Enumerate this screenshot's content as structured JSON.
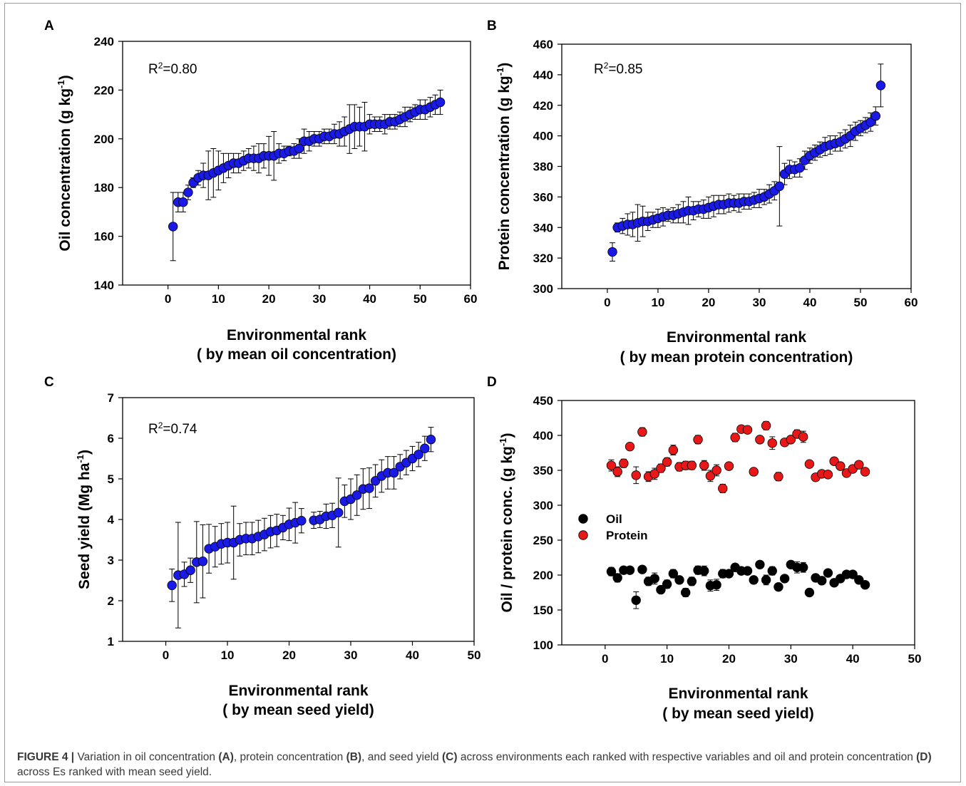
{
  "figure": {
    "caption_label": "FIGURE 4 |",
    "caption": {
      "t1": " Variation in oil concentration ",
      "a": "(A)",
      "t2": ", protein concentration ",
      "b": "(B)",
      "t3": ", and seed yield ",
      "c": "(C)",
      "t4": " across environments each ranked with respective variables and oil and protein concentration ",
      "d": "(D)",
      "t5": " across Es ranked with mean seed yield."
    }
  },
  "colors": {
    "marker_blue": "#1a1ae6",
    "marker_red": "#e81818",
    "marker_black": "#000000"
  },
  "chart_data": [
    {
      "panel": "A",
      "type": "scatter",
      "annotation": "R2=0.80",
      "ylabel": "Oil concentration (g kg-1)",
      "xlabel_line1": "Environmental rank",
      "xlabel_line2": "( by mean oil concentration)",
      "xlim": [
        -9,
        60
      ],
      "ylim": [
        140,
        240
      ],
      "xticks": [
        0,
        10,
        20,
        30,
        40,
        50,
        60
      ],
      "yticks": [
        140,
        160,
        180,
        200,
        220,
        240
      ],
      "series": [
        {
          "x": [
            1,
            2,
            3,
            4,
            5,
            6,
            7,
            8,
            9,
            10,
            11,
            12,
            13,
            14,
            15,
            16,
            17,
            18,
            19,
            20,
            21,
            22,
            23,
            24,
            25,
            26,
            27,
            28,
            29,
            30,
            31,
            32,
            33,
            34,
            35,
            36,
            37,
            38,
            39,
            40,
            41,
            42,
            43,
            44,
            45,
            46,
            47,
            48,
            49,
            50,
            51,
            52,
            53,
            54
          ],
          "y": [
            164,
            174,
            174,
            178,
            182,
            184,
            185,
            185,
            186,
            187,
            188,
            189,
            190,
            190,
            191,
            192,
            192,
            192,
            193,
            193,
            193,
            194,
            194,
            195,
            195,
            196,
            199,
            199,
            200,
            200,
            201,
            201,
            202,
            202,
            203,
            204,
            205,
            205,
            205,
            206,
            206,
            206,
            206,
            207,
            207,
            208,
            209,
            210,
            211,
            212,
            212,
            213,
            214,
            215
          ],
          "err": [
            14,
            4,
            4,
            3,
            2,
            3,
            5,
            10,
            10,
            8,
            6,
            5,
            4,
            4,
            4,
            4,
            5,
            6,
            5,
            8,
            10,
            4,
            3,
            2,
            3,
            4,
            5,
            4,
            3,
            3,
            3,
            3,
            4,
            5,
            6,
            10,
            9,
            8,
            10,
            4,
            3,
            3,
            4,
            3,
            3,
            3,
            4,
            3,
            3,
            4,
            4,
            4,
            4,
            5
          ]
        }
      ]
    },
    {
      "panel": "B",
      "type": "scatter",
      "annotation": "R2=0.85",
      "ylabel": "Protein concentration (g kg-1)",
      "xlabel_line1": "Environmental rank",
      "xlabel_line2": "( by mean protein concentration)",
      "xlim": [
        -9,
        60
      ],
      "ylim": [
        300,
        460
      ],
      "xticks": [
        0,
        10,
        20,
        30,
        40,
        50,
        60
      ],
      "yticks": [
        300,
        320,
        340,
        360,
        380,
        400,
        420,
        440,
        460
      ],
      "series": [
        {
          "x": [
            1,
            2,
            3,
            4,
            5,
            6,
            7,
            8,
            9,
            10,
            11,
            12,
            13,
            14,
            15,
            16,
            17,
            18,
            19,
            20,
            21,
            22,
            23,
            24,
            25,
            26,
            27,
            28,
            29,
            30,
            31,
            32,
            33,
            34,
            35,
            36,
            37,
            38,
            39,
            40,
            41,
            42,
            43,
            44,
            45,
            46,
            47,
            48,
            49,
            50,
            51,
            52,
            53,
            54
          ],
          "y": [
            324,
            340,
            341,
            342,
            342,
            343,
            344,
            344,
            345,
            346,
            347,
            348,
            348,
            349,
            350,
            351,
            351,
            352,
            352,
            353,
            354,
            355,
            355,
            356,
            356,
            356,
            357,
            357,
            358,
            359,
            360,
            362,
            364,
            367,
            375,
            378,
            378,
            379,
            384,
            387,
            389,
            391,
            393,
            394,
            395,
            396,
            398,
            400,
            403,
            405,
            407,
            409,
            413,
            433
          ],
          "err": [
            6,
            3,
            5,
            7,
            8,
            12,
            10,
            6,
            5,
            6,
            6,
            4,
            5,
            6,
            7,
            9,
            6,
            5,
            6,
            7,
            7,
            6,
            6,
            6,
            5,
            6,
            5,
            5,
            5,
            6,
            5,
            6,
            6,
            26,
            7,
            6,
            5,
            6,
            6,
            5,
            5,
            5,
            6,
            6,
            5,
            6,
            6,
            7,
            6,
            5,
            5,
            6,
            6,
            14
          ]
        }
      ]
    },
    {
      "panel": "C",
      "type": "scatter",
      "annotation": "R2=0.74",
      "ylabel": "Seed yield (Mg ha-1)",
      "xlabel_line1": "Environmental rank",
      "xlabel_line2": "( by mean seed yield)",
      "xlim": [
        -7,
        50
      ],
      "ylim": [
        1,
        7
      ],
      "xticks": [
        0,
        10,
        20,
        30,
        40,
        50
      ],
      "yticks": [
        1,
        2,
        3,
        4,
        5,
        6,
        7
      ],
      "series": [
        {
          "x": [
            1,
            2,
            3,
            4,
            5,
            6,
            7,
            8,
            9,
            10,
            11,
            12,
            13,
            14,
            15,
            16,
            17,
            18,
            19,
            20,
            21,
            22,
            24,
            25,
            26,
            27,
            28,
            29,
            30,
            31,
            32,
            33,
            34,
            35,
            36,
            37,
            38,
            39,
            40,
            41,
            42,
            43
          ],
          "y": [
            2.38,
            2.63,
            2.65,
            2.75,
            2.95,
            2.97,
            3.28,
            3.33,
            3.4,
            3.43,
            3.43,
            3.5,
            3.53,
            3.53,
            3.58,
            3.63,
            3.7,
            3.73,
            3.8,
            3.88,
            3.92,
            3.97,
            3.98,
            4.0,
            4.08,
            4.1,
            4.17,
            4.45,
            4.5,
            4.6,
            4.75,
            4.77,
            4.95,
            5.07,
            5.15,
            5.15,
            5.3,
            5.4,
            5.5,
            5.6,
            5.75,
            5.97
          ],
          "err": [
            0.4,
            1.3,
            0.3,
            0.3,
            1.0,
            0.9,
            0.6,
            0.5,
            0.5,
            0.5,
            0.9,
            0.4,
            0.4,
            0.4,
            0.4,
            0.4,
            0.4,
            0.4,
            0.3,
            0.4,
            0.5,
            0.3,
            0.2,
            0.2,
            0.3,
            0.3,
            0.85,
            0.4,
            0.5,
            0.5,
            0.5,
            0.5,
            0.4,
            0.4,
            0.4,
            0.4,
            0.3,
            0.3,
            0.3,
            0.3,
            0.3,
            0.3
          ]
        }
      ]
    },
    {
      "panel": "D",
      "type": "scatter",
      "ylabel": "Oil / protein conc. (g kg-1)",
      "xlabel_line1": "Environmental rank",
      "xlabel_line2": "( by mean seed yield)",
      "xlim": [
        -7,
        50
      ],
      "ylim": [
        100,
        450
      ],
      "xticks": [
        0,
        10,
        20,
        30,
        40,
        50
      ],
      "yticks": [
        100,
        150,
        200,
        250,
        300,
        350,
        400,
        450
      ],
      "legend": "left, inside plot",
      "series": [
        {
          "name": "Oil",
          "x": [
            1,
            2,
            3,
            4,
            5,
            6,
            7,
            8,
            9,
            10,
            11,
            12,
            13,
            14,
            15,
            16,
            17,
            18,
            19,
            20,
            21,
            22,
            23,
            24,
            25,
            26,
            27,
            28,
            29,
            30,
            31,
            32,
            33,
            34,
            35,
            36,
            37,
            38,
            39,
            40,
            41,
            42
          ],
          "y": [
            205,
            196,
            207,
            207,
            164,
            208,
            191,
            195,
            179,
            187,
            202,
            193,
            175,
            191,
            207,
            206,
            185,
            186,
            202,
            202,
            211,
            206,
            206,
            193,
            215,
            193,
            206,
            183,
            195,
            215,
            211,
            211,
            175,
            196,
            192,
            203,
            189,
            195,
            201,
            201,
            193,
            186
          ],
          "err": [
            6,
            6,
            4,
            4,
            12,
            4,
            6,
            8,
            5,
            6,
            6,
            5,
            6,
            6,
            6,
            7,
            8,
            8,
            6,
            5,
            5,
            5,
            5,
            5,
            5,
            7,
            6,
            5,
            5,
            5,
            8,
            7,
            5,
            5,
            5,
            5,
            5,
            5,
            5,
            5,
            5,
            5
          ]
        },
        {
          "name": "Protein",
          "x": [
            1,
            2,
            3,
            4,
            5,
            6,
            7,
            8,
            9,
            10,
            11,
            12,
            13,
            14,
            15,
            16,
            17,
            18,
            19,
            20,
            21,
            22,
            23,
            24,
            25,
            26,
            27,
            28,
            29,
            30,
            31,
            32,
            33,
            34,
            35,
            36,
            37,
            38,
            39,
            40,
            41,
            42
          ],
          "y": [
            357,
            348,
            360,
            384,
            343,
            405,
            341,
            345,
            353,
            362,
            379,
            355,
            357,
            357,
            394,
            357,
            342,
            350,
            324,
            356,
            397,
            409,
            408,
            348,
            394,
            414,
            389,
            341,
            390,
            394,
            402,
            398,
            359,
            340,
            345,
            344,
            363,
            356,
            346,
            352,
            358,
            348
          ],
          "err": [
            8,
            7,
            6,
            5,
            12,
            6,
            7,
            8,
            6,
            6,
            7,
            6,
            6,
            6,
            6,
            7,
            8,
            8,
            6,
            5,
            6,
            5,
            5,
            5,
            5,
            6,
            9,
            6,
            5,
            5,
            6,
            8,
            5,
            5,
            5,
            5,
            5,
            5,
            5,
            5,
            5,
            5
          ]
        }
      ]
    }
  ]
}
